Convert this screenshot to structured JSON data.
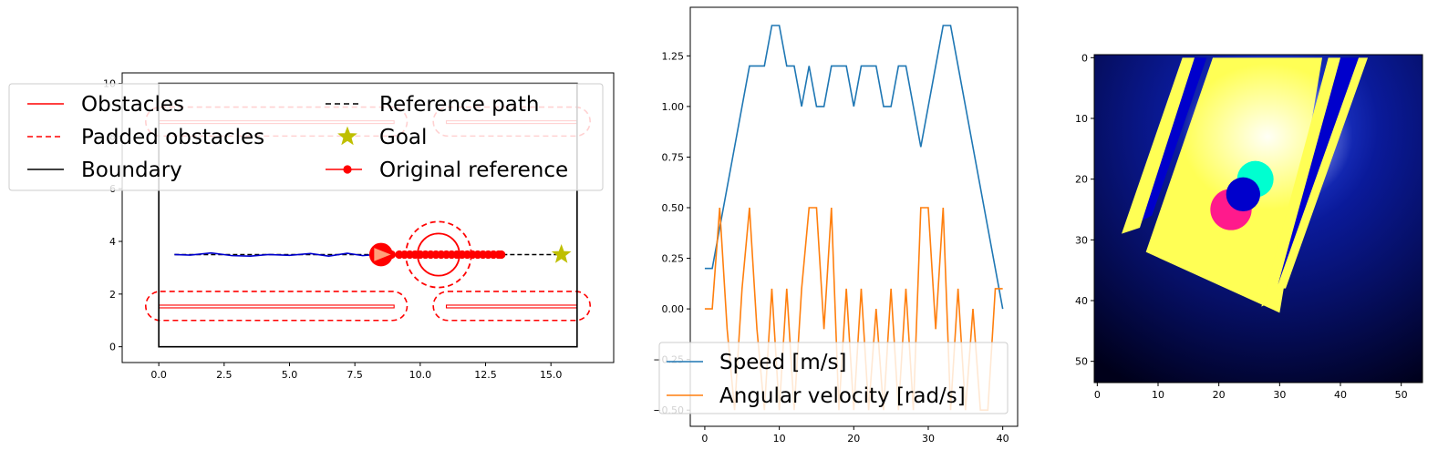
{
  "colors": {
    "obstacle": "#ff0000",
    "boundary": "#000000",
    "reference": "#000000",
    "goal": "#bfbf00",
    "trajectory": "#0000cc",
    "speed": "#1f77b4",
    "angular": "#ff7f0e",
    "heatmap_bg": "#00002a",
    "heatmap_yellow": "#ffff55",
    "heatmap_blue": "#0000cc",
    "heatmap_cyan": "#00ffd0",
    "heatmap_magenta": "#ff1a8c"
  },
  "chart_data": [
    {
      "type": "line",
      "xlim": [
        -1.4,
        17.4
      ],
      "ylim": [
        -0.6,
        10.4
      ],
      "x_ticks": [
        0.0,
        2.5,
        5.0,
        7.5,
        10.0,
        12.5,
        15.0
      ],
      "x_tick_labels": [
        "0.0",
        "2.5",
        "5.0",
        "7.5",
        "10.0",
        "12.5",
        "15.0"
      ],
      "y_ticks": [
        0,
        2,
        4,
        6,
        8,
        10
      ],
      "y_tick_labels": [
        "0",
        "2",
        "4",
        "6",
        "8",
        "10"
      ],
      "legend": {
        "placement": "top",
        "entries": [
          {
            "label": "Obstacles",
            "style": "solid",
            "color": "#ff0000"
          },
          {
            "label": "Padded obstacles",
            "style": "dashed",
            "color": "#ff0000"
          },
          {
            "label": "Boundary",
            "style": "solid",
            "color": "#000000"
          },
          {
            "label": "Reference path",
            "style": "dashed",
            "color": "#000000"
          },
          {
            "label": "Goal",
            "style": "star",
            "color": "#bfbf00"
          },
          {
            "label": "Original reference",
            "style": "dot-line",
            "color": "#ff0000"
          }
        ]
      },
      "boundary": [
        [
          0,
          0
        ],
        [
          16,
          0
        ],
        [
          16,
          10
        ],
        [
          0,
          10
        ]
      ],
      "obstacles": [
        {
          "x": [
            0,
            9
          ],
          "y": [
            1.5,
            1.58
          ]
        },
        {
          "x": [
            11,
            16
          ],
          "y": [
            1.5,
            1.58
          ]
        },
        {
          "x": [
            0,
            9
          ],
          "y": [
            8.5,
            8.58
          ]
        },
        {
          "x": [
            11,
            16
          ],
          "y": [
            8.5,
            8.58
          ]
        }
      ],
      "padded_obstacles": [
        {
          "x": [
            -0.5,
            9.5
          ],
          "y": [
            1.0,
            2.1
          ]
        },
        {
          "x": [
            10.5,
            16.5
          ],
          "y": [
            1.0,
            2.1
          ]
        },
        {
          "x": [
            -0.5,
            9.5
          ],
          "y": [
            8.0,
            9.1
          ]
        },
        {
          "x": [
            10.5,
            16.5
          ],
          "y": [
            8.0,
            9.1
          ]
        }
      ],
      "dynamic_obstacle": {
        "x": 10.7,
        "y": 3.5,
        "r": 0.8,
        "padded_r": 1.25
      },
      "robot": {
        "x": 8.5,
        "y": 3.5,
        "r": 0.45
      },
      "reference_path": {
        "x": [
          0.6,
          15.4
        ],
        "y": [
          3.5,
          3.5
        ]
      },
      "goal": {
        "x": 15.4,
        "y": 3.5
      },
      "original_reference": {
        "x": [
          8.9,
          9.2,
          9.4,
          9.6,
          9.8,
          10.0,
          10.2,
          10.4,
          10.6,
          10.8,
          11.0,
          11.2,
          11.4,
          11.6,
          11.8,
          12.0,
          12.2,
          12.4,
          12.6,
          12.8,
          13.0,
          13.1
        ],
        "y": 3.5
      },
      "trajectory": {
        "x": [
          0.6,
          1.2,
          2.0,
          2.8,
          3.5,
          4.2,
          5.0,
          5.8,
          6.5,
          7.2,
          7.8,
          8.3
        ],
        "y": [
          3.5,
          3.48,
          3.56,
          3.46,
          3.44,
          3.5,
          3.47,
          3.54,
          3.44,
          3.55,
          3.46,
          3.5
        ]
      }
    },
    {
      "type": "line",
      "xlim": [
        -1.95,
        42.0
      ],
      "ylim": [
        -0.58,
        1.49
      ],
      "x_ticks": [
        0,
        10,
        20,
        30,
        40
      ],
      "x_tick_labels": [
        "0",
        "10",
        "20",
        "30",
        "40"
      ],
      "y_ticks": [
        -0.5,
        -0.25,
        0.0,
        0.25,
        0.5,
        0.75,
        1.0,
        1.25
      ],
      "y_tick_labels": [
        "−0.50",
        "−0.25",
        "0.00",
        "0.25",
        "0.50",
        "0.75",
        "1.00",
        "1.25"
      ],
      "legend": {
        "placement": "lower center"
      },
      "series": [
        {
          "name": "Speed [m/s]",
          "color": "#1f77b4",
          "x": [
            0,
            1,
            2,
            3,
            4,
            5,
            6,
            7,
            8,
            9,
            10,
            11,
            12,
            13,
            14,
            15,
            16,
            17,
            18,
            19,
            20,
            21,
            22,
            23,
            24,
            25,
            26,
            27,
            28,
            29,
            30,
            31,
            32,
            33,
            34,
            35,
            36,
            37,
            38,
            39,
            40
          ],
          "values": [
            0.2,
            0.2,
            0.4,
            0.6,
            0.8,
            1.0,
            1.2,
            1.2,
            1.2,
            1.4,
            1.4,
            1.2,
            1.2,
            1.0,
            1.2,
            1.0,
            1.0,
            1.2,
            1.2,
            1.2,
            1.0,
            1.2,
            1.2,
            1.2,
            1.0,
            1.0,
            1.2,
            1.2,
            1.0,
            0.8,
            1.0,
            1.2,
            1.4,
            1.4,
            1.2,
            1.0,
            0.8,
            0.6,
            0.4,
            0.2,
            0.0
          ]
        },
        {
          "name": "Angular velocity [rad/s]",
          "color": "#ff7f0e",
          "x": [
            0,
            1,
            2,
            3,
            4,
            5,
            6,
            7,
            8,
            9,
            10,
            11,
            12,
            13,
            14,
            15,
            16,
            17,
            18,
            19,
            20,
            21,
            22,
            23,
            24,
            25,
            26,
            27,
            28,
            29,
            30,
            31,
            32,
            33,
            34,
            35,
            36,
            37,
            38,
            39,
            40
          ],
          "values": [
            0.0,
            0.0,
            0.5,
            -0.1,
            -0.5,
            0.1,
            0.5,
            -0.1,
            -0.5,
            0.1,
            -0.5,
            0.1,
            -0.5,
            0.1,
            0.5,
            0.5,
            -0.1,
            0.5,
            -0.5,
            0.1,
            -0.5,
            0.1,
            -0.5,
            0.0,
            -0.5,
            0.1,
            -0.5,
            0.1,
            -0.5,
            0.5,
            0.5,
            -0.1,
            0.5,
            -0.5,
            0.1,
            -0.5,
            0.0,
            -0.5,
            -0.5,
            0.1,
            0.1
          ]
        }
      ]
    },
    {
      "type": "heatmap",
      "xlim": [
        -0.5,
        53.5
      ],
      "ylim": [
        53.5,
        -0.5
      ],
      "x_ticks": [
        0,
        10,
        20,
        30,
        40,
        50
      ],
      "x_tick_labels": [
        "0",
        "10",
        "20",
        "30",
        "40",
        "50"
      ],
      "y_ticks": [
        0,
        10,
        20,
        30,
        40,
        50
      ],
      "y_tick_labels": [
        "0",
        "10",
        "20",
        "30",
        "40",
        "50"
      ],
      "corridor_polygon": [
        [
          19,
          0
        ],
        [
          37,
          0
        ],
        [
          30,
          42
        ],
        [
          8,
          32
        ]
      ],
      "yellow_strips": [
        {
          "polygon": [
            [
              14,
              0
            ],
            [
              16,
              0
            ],
            [
              7,
              28
            ],
            [
              4,
              29
            ]
          ]
        },
        {
          "polygon": [
            [
              38,
              0
            ],
            [
              40,
              0
            ],
            [
              29,
              40
            ],
            [
              27,
              41
            ]
          ]
        },
        {
          "polygon": [
            [
              43,
              0
            ],
            [
              44.5,
              0
            ],
            [
              31,
              38
            ],
            [
              29.5,
              38
            ]
          ]
        }
      ],
      "blue_strips": [
        {
          "polygon": [
            [
              16,
              0
            ],
            [
              18,
              0
            ],
            [
              9,
              26
            ],
            [
              7,
              27
            ]
          ]
        },
        {
          "polygon": [
            [
              40,
              0
            ],
            [
              43,
              0
            ],
            [
              31,
              36
            ],
            [
              29,
              38
            ]
          ]
        }
      ],
      "cyan_disk": {
        "cx": 26,
        "cy": 20,
        "r": 3
      },
      "magenta_disk": {
        "cx": 22,
        "cy": 25,
        "r": 3.4
      },
      "blue_disk": {
        "cx": 24,
        "cy": 22.5,
        "r": 2.8
      }
    }
  ]
}
